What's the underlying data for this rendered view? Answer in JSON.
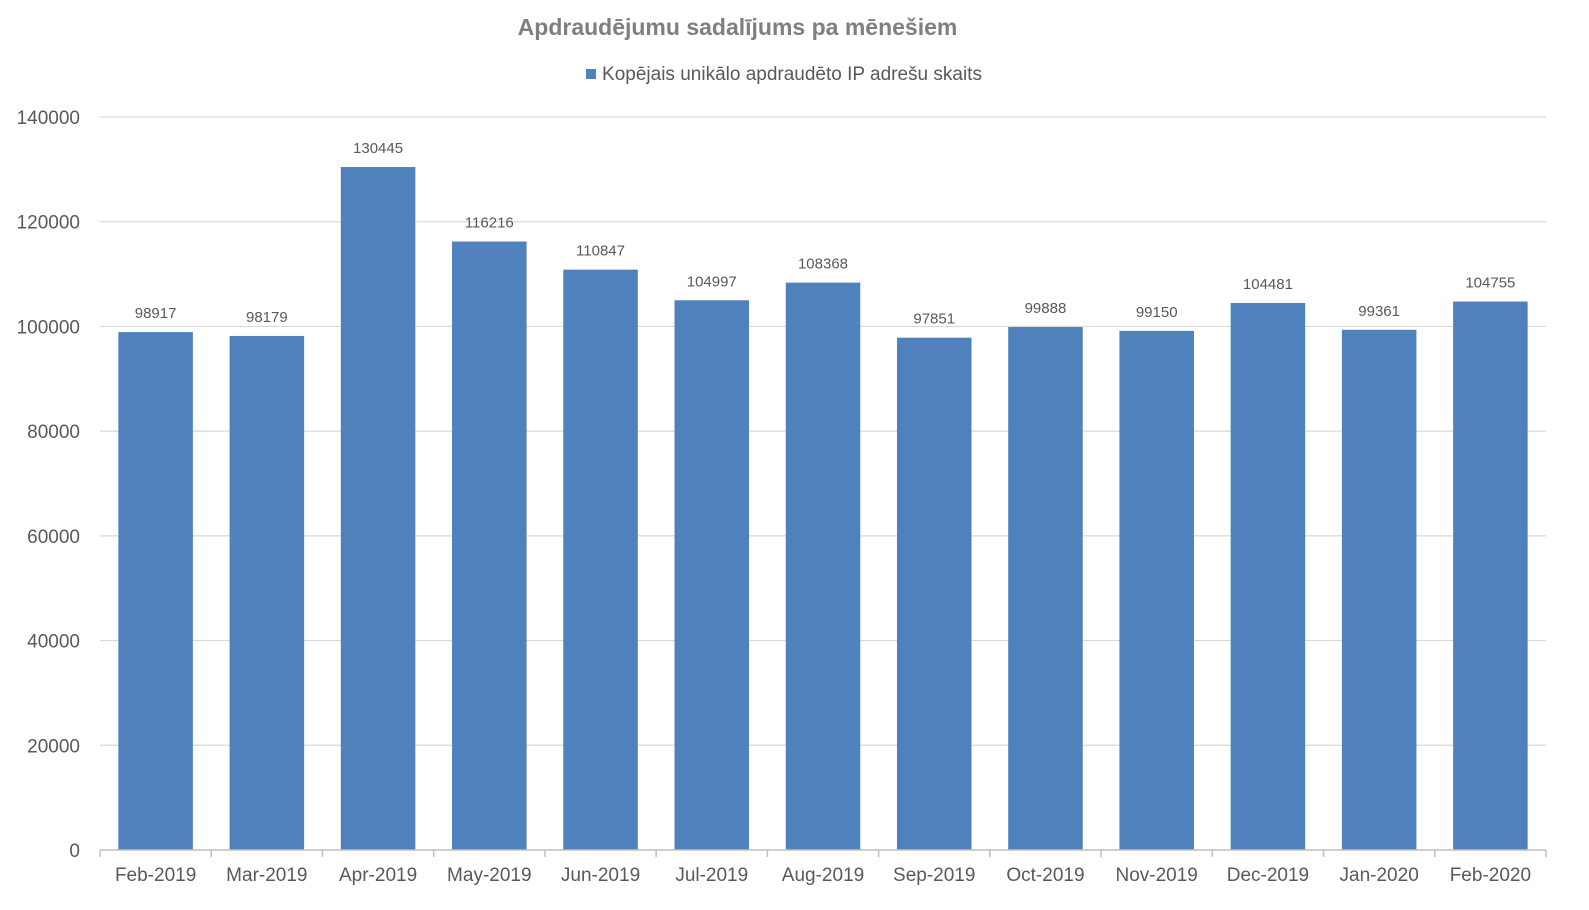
{
  "chart_data": {
    "type": "bar",
    "title": "Apdraudējumu sadalījums pa mēnešiem",
    "xlabel": "",
    "ylabel": "",
    "categories": [
      "Feb-2019",
      "Mar-2019",
      "Apr-2019",
      "May-2019",
      "Jun-2019",
      "Jul-2019",
      "Aug-2019",
      "Sep-2019",
      "Oct-2019",
      "Nov-2019",
      "Dec-2019",
      "Jan-2020",
      "Feb-2020"
    ],
    "series": [
      {
        "name": "Kopējais unikālo apdraudēto IP adrešu skaits",
        "color": "#4f81bd",
        "values": [
          98917,
          98179,
          130445,
          116216,
          110847,
          104997,
          108368,
          97851,
          99888,
          99150,
          104481,
          99361,
          104755
        ]
      }
    ],
    "ylim": [
      0,
      140000
    ],
    "yticks": [
      0,
      20000,
      40000,
      60000,
      80000,
      100000,
      120000,
      140000
    ],
    "grid": true,
    "legend_position": "top",
    "data_labels": true
  }
}
